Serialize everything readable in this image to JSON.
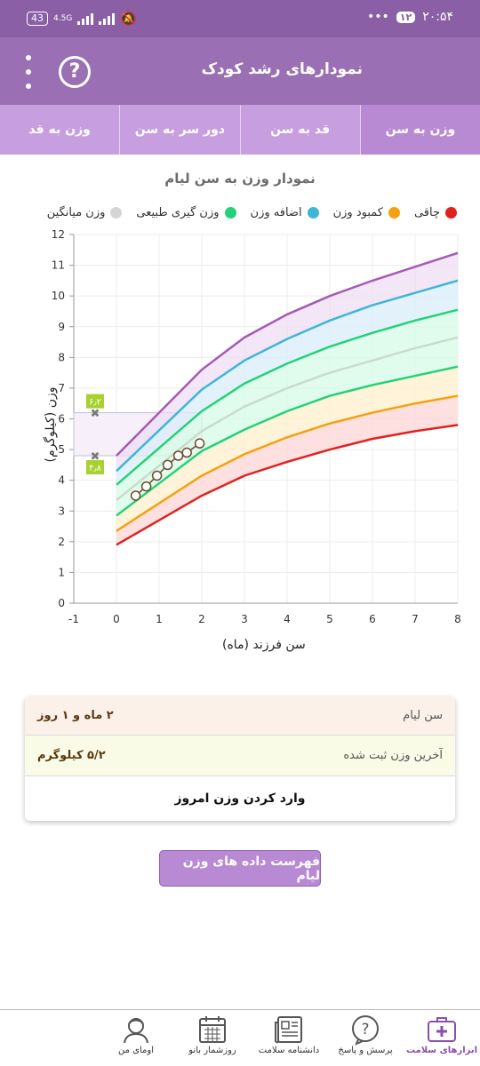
{
  "status_bar": {
    "battery": "43",
    "network": "4.5G",
    "time": "۲۰:۵۴",
    "notification_count": "۱۲",
    "dots": "•••"
  },
  "app_bar": {
    "title": "نمودارهای رشد کودک",
    "help_icon": "help-circle-icon",
    "menu_icon": "more-vertical-icon"
  },
  "tabs": [
    {
      "label": "وزن به سن",
      "active": true
    },
    {
      "label": "قد به سن",
      "active": false
    },
    {
      "label": "دور سر به سن",
      "active": false
    },
    {
      "label": "وزن به قد",
      "active": false
    }
  ],
  "chart_title": "نمودار وزن به سن لیام",
  "legend": [
    {
      "label": "چاقی",
      "color": "#e0221e"
    },
    {
      "label": "کمبود وزن",
      "color": "#f5a10e"
    },
    {
      "label": "اضافه وزن",
      "color": "#3fb6d6"
    },
    {
      "label": "وزن گیری طبیعی",
      "color": "#22d27a"
    },
    {
      "label": "وزن میانگین",
      "color": "#d4d4d4"
    }
  ],
  "chart_data": {
    "type": "line",
    "xlabel": "سن فرزند (ماه)",
    "ylabel": "وزن (کیلوگرم)",
    "xlim": [
      -1,
      8
    ],
    "ylim": [
      0,
      12
    ],
    "x_ticks": [
      "-1",
      "0",
      "1",
      "2",
      "3",
      "4",
      "5",
      "6",
      "7",
      "8"
    ],
    "y_ticks": [
      "0",
      "1",
      "2",
      "3",
      "4",
      "5",
      "6",
      "7",
      "8",
      "9",
      "10",
      "11",
      "12"
    ],
    "x": [
      0,
      2,
      3,
      4,
      5,
      6,
      7,
      8
    ],
    "series": [
      {
        "color": "#e0221e",
        "values": [
          1.9,
          3.5,
          4.15,
          4.6,
          5.0,
          5.35,
          5.6,
          5.8
        ]
      },
      {
        "color": "#f5a10e",
        "values": [
          2.35,
          4.15,
          4.85,
          5.4,
          5.85,
          6.2,
          6.5,
          6.75
        ]
      },
      {
        "color": "#22d27a",
        "values": [
          2.85,
          4.95,
          5.65,
          6.25,
          6.75,
          7.1,
          7.4,
          7.7
        ]
      },
      {
        "color": "#c8dccb",
        "values": [
          3.35,
          5.6,
          6.4,
          7.0,
          7.5,
          7.9,
          8.3,
          8.65
        ]
      },
      {
        "color": "#22d27a",
        "values": [
          3.85,
          6.25,
          7.15,
          7.8,
          8.35,
          8.8,
          9.2,
          9.55
        ]
      },
      {
        "color": "#3fb6d6",
        "values": [
          4.3,
          6.95,
          7.9,
          8.6,
          9.2,
          9.7,
          10.1,
          10.5
        ]
      },
      {
        "color": "#a65ab6",
        "values": [
          4.8,
          7.6,
          8.65,
          9.4,
          10.0,
          10.5,
          10.95,
          11.4
        ]
      }
    ],
    "band_fills": [
      "#ffd6d6",
      "#fff0cc",
      "#d6fbe6",
      "#d6fbe6",
      "#d9eef8",
      "#eeddf4"
    ],
    "child_points": {
      "x": [
        0.45,
        0.7,
        0.95,
        1.2,
        1.45,
        1.65,
        1.95
      ],
      "y": [
        3.5,
        3.8,
        4.15,
        4.5,
        4.8,
        4.9,
        5.2
      ]
    },
    "markers": [
      {
        "label": "۶٫۲",
        "x": -0.5,
        "y": 6.2
      },
      {
        "label": "۴٫۸",
        "x": -0.5,
        "y": 4.8
      }
    ],
    "highlight_range": {
      "x": [
        -1,
        2
      ],
      "y": [
        4.8,
        6.2
      ]
    }
  },
  "info": {
    "age_label": "سن لیام",
    "age_value": "۲ ماه و ۱ روز",
    "weight_label": "آخرین وزن ثبت شده",
    "weight_value": "۵/۲ کیلوگرم",
    "enter_label": "وارد کردن وزن امروز"
  },
  "list_button": "فهرست داده های وزن لیام",
  "bottom_nav": [
    {
      "label": "ابزارهای سلامت",
      "icon": "medical-kit-icon",
      "active": true
    },
    {
      "label": "پرسش و پاسخ",
      "icon": "question-bubble-icon",
      "active": false
    },
    {
      "label": "دانشنامه سلامت",
      "icon": "newspaper-icon",
      "active": false
    },
    {
      "label": "روزشمار بانو",
      "icon": "calendar-icon",
      "active": false
    },
    {
      "label": "اومای من",
      "icon": "user-avatar-icon",
      "active": false
    }
  ]
}
